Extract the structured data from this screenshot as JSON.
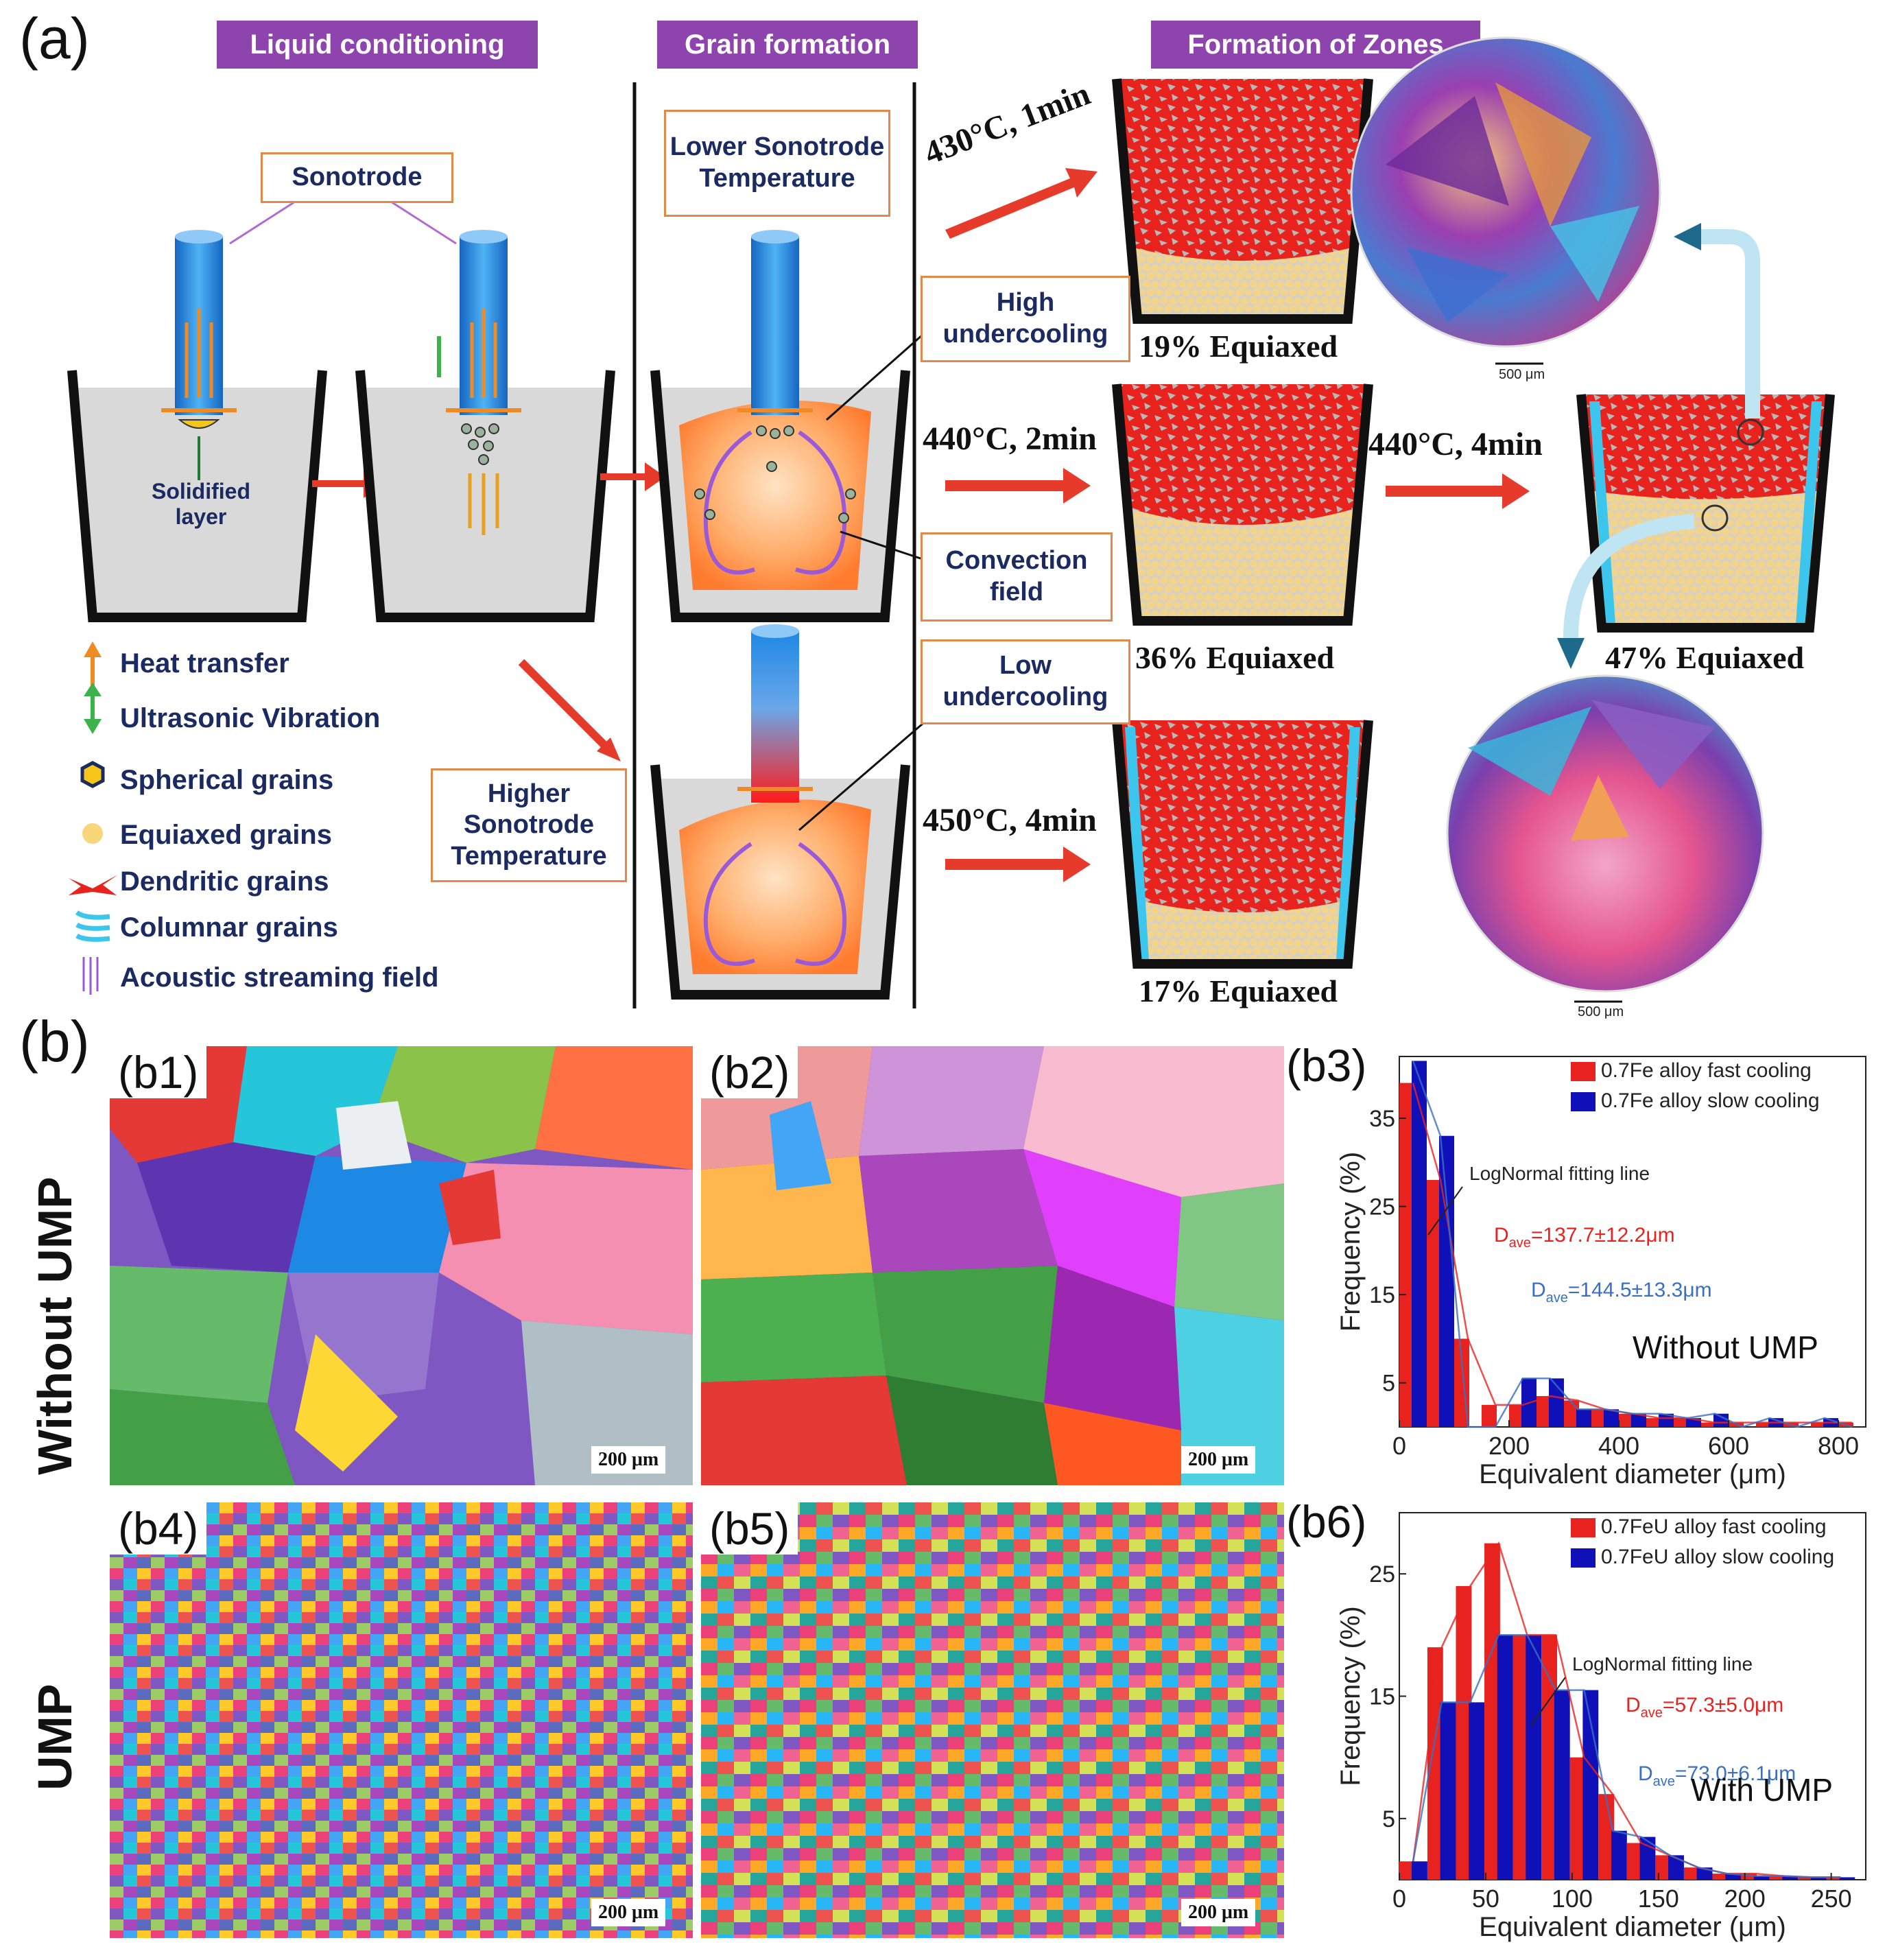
{
  "panel_a": {
    "label": "(a)",
    "headers": {
      "liquid": "Liquid conditioning",
      "grain": "Grain formation",
      "zones": "Formation of Zones"
    },
    "callouts": {
      "sonotrode": "Sonotrode",
      "solidified": "Solidified layer",
      "lower_temp": "Lower Sonotrode Temperature",
      "high_under": "High undercooling",
      "convection": "Convection field",
      "low_under": "Low undercooling",
      "higher_temp": "Higher Sonotrode Temperature"
    },
    "legend": [
      {
        "icon": "heat-transfer-arrow-icon",
        "label": "Heat transfer"
      },
      {
        "icon": "ultrasonic-vibration-arrow-icon",
        "label": "Ultrasonic Vibration"
      },
      {
        "icon": "spherical-grain-icon",
        "label": "Spherical grains"
      },
      {
        "icon": "equiaxed-grain-icon",
        "label": "Equiaxed grains"
      },
      {
        "icon": "dendritic-grain-icon",
        "label": "Dendritic grains"
      },
      {
        "icon": "columnar-grain-icon",
        "label": "Columnar grains"
      },
      {
        "icon": "acoustic-streaming-icon",
        "label": "Acoustic streaming field"
      }
    ],
    "conditions": {
      "c430": "430°C, 1min",
      "c440a": "440°C, 2min",
      "c440b": "440°C, 4min",
      "c450": "450°C, 4min"
    },
    "equiaxed": {
      "e19": "19% Equiaxed",
      "e36": "36% Equiaxed",
      "e47": "47% Equiaxed",
      "e17": "17% Equiaxed"
    },
    "micro_scale": "500 μm",
    "colors": {
      "header": "#8e44ad",
      "arrow": "#e63a2a",
      "callout_border": "#e08a4a",
      "sonotrode": "#1f7fd6",
      "melt": "#d9d9d9",
      "dendrite": "#e8221c",
      "equiaxed": "#f2d48a",
      "columnar": "#3cc6ee"
    }
  },
  "panel_b": {
    "label": "(b)",
    "row_labels": {
      "without": "Without UMP",
      "with": "UMP"
    },
    "maps": {
      "b1": "(b1)",
      "b2": "(b2)",
      "b4": "(b4)",
      "b5": "(b5)"
    },
    "scale": "200 μm",
    "b3_label": "(b3)",
    "b6_label": "(b6)"
  },
  "chart_data": [
    {
      "id": "b3",
      "type": "bar",
      "xlabel": "Equivalent diameter (μm)",
      "ylabel": "Frequency (%)",
      "xlim": [
        0,
        850
      ],
      "ylim": [
        0,
        42
      ],
      "xticks": [
        0,
        200,
        400,
        600,
        800
      ],
      "yticks": [
        5,
        15,
        25,
        35
      ],
      "bin_width": 50,
      "x": [
        25,
        75,
        125,
        175,
        225,
        275,
        325,
        375,
        425,
        475,
        525,
        575,
        625,
        675,
        725,
        775,
        825
      ],
      "series": [
        {
          "name": "0.7Fe alloy fast cooling",
          "color": "#e8231f",
          "values": [
            39,
            28,
            10,
            2.5,
            2.5,
            3.5,
            3,
            2,
            1.5,
            1,
            1,
            0.5,
            0.5,
            0.5,
            0.5,
            0.5,
            0.5
          ]
        },
        {
          "name": "0.7Fe alloy slow cooling",
          "color": "#1010b8",
          "values": [
            41.5,
            33,
            0,
            0,
            5.5,
            5.5,
            2,
            2,
            1.5,
            1.5,
            1,
            1.5,
            0,
            1,
            0,
            1,
            0
          ]
        }
      ],
      "fit_label": "LogNormal fitting line",
      "annotations": [
        {
          "text_main": "D",
          "sub": "ave",
          "value": "=137.7±12.2μm",
          "color": "#e8231f"
        },
        {
          "text_main": "D",
          "sub": "ave",
          "value": "=144.5±13.3μm",
          "color": "#3a6fc4"
        }
      ],
      "note": "Without UMP"
    },
    {
      "id": "b6",
      "type": "bar",
      "xlabel": "Equivalent diameter (μm)",
      "ylabel": "Frequency (%)",
      "xlim": [
        0,
        270
      ],
      "ylim": [
        0,
        30
      ],
      "xticks": [
        0,
        50,
        100,
        150,
        200,
        250
      ],
      "yticks": [
        5,
        15,
        25
      ],
      "bin_width": 16.5,
      "x": [
        8,
        24.5,
        41,
        57.5,
        74,
        90.5,
        107,
        123.5,
        140,
        156.5,
        173,
        189.5,
        206,
        222.5,
        239,
        255.5
      ],
      "series": [
        {
          "name": "0.7FeU alloy fast cooling",
          "color": "#e8231f",
          "values": [
            1.5,
            19,
            24,
            27.5,
            20,
            20,
            10,
            7,
            3,
            2,
            1,
            0.5,
            0.5,
            0.3,
            0.2,
            0.2
          ]
        },
        {
          "name": "0.7FeU alloy slow cooling",
          "color": "#1010b8",
          "values": [
            1.5,
            14.5,
            14.5,
            20,
            20,
            15.5,
            15.5,
            4,
            3.5,
            2,
            1,
            0.5,
            0.3,
            0.3,
            0.2,
            0.2
          ]
        }
      ],
      "fit_label": "LogNormal fitting line",
      "annotations": [
        {
          "text_main": "D",
          "sub": "ave",
          "value": "=57.3±5.0μm",
          "color": "#e8231f"
        },
        {
          "text_main": "D",
          "sub": "ave",
          "value": "=73.0±6.1μm",
          "color": "#3a6fc4"
        }
      ],
      "note": "With UMP"
    }
  ]
}
